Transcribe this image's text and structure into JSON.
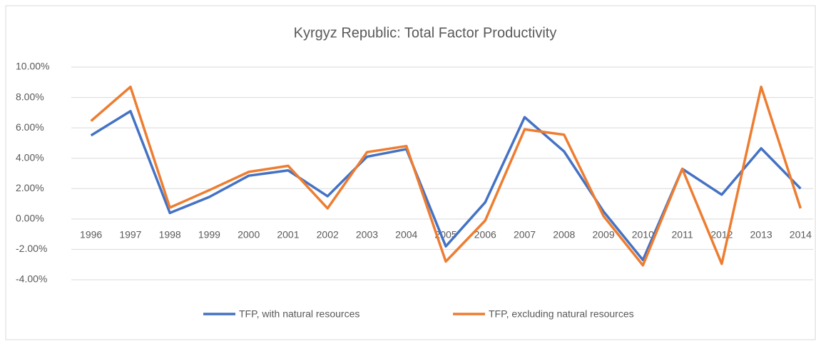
{
  "chart_data": {
    "type": "line",
    "title": "Kyrgyz Republic: Total Factor Productivity",
    "categories": [
      "1996",
      "1997",
      "1998",
      "1999",
      "2000",
      "2001",
      "2002",
      "2003",
      "2004",
      "2005",
      "2006",
      "2007",
      "2008",
      "2009",
      "2010",
      "2011",
      "2012",
      "2013",
      "2014"
    ],
    "series": [
      {
        "name": "TFP, with natural resources",
        "color": "#4472c4",
        "values": [
          5.5,
          7.1,
          0.4,
          1.45,
          2.85,
          3.2,
          1.5,
          4.1,
          4.6,
          -1.8,
          1.1,
          6.7,
          4.45,
          0.5,
          -2.7,
          3.3,
          1.6,
          4.65,
          2.0
        ]
      },
      {
        "name": "TFP, excluding natural resources",
        "color": "#ed7d31",
        "values": [
          6.45,
          8.7,
          0.75,
          1.9,
          3.1,
          3.5,
          0.7,
          4.4,
          4.8,
          -2.8,
          -0.1,
          5.9,
          5.55,
          0.2,
          -3.05,
          3.3,
          -2.95,
          8.7,
          0.7
        ]
      }
    ],
    "ylim": [
      -4,
      10
    ],
    "yticks": [
      {
        "value": -4,
        "label": "-4.00%"
      },
      {
        "value": -2,
        "label": "-2.00%"
      },
      {
        "value": 0,
        "label": "0.00%"
      },
      {
        "value": 2,
        "label": "2.00%"
      },
      {
        "value": 4,
        "label": "4.00%"
      },
      {
        "value": 6,
        "label": "6.00%"
      },
      {
        "value": 8,
        "label": "8.00%"
      },
      {
        "value": 10,
        "label": "10.00%"
      }
    ],
    "grid": true,
    "legend": "bottom"
  }
}
